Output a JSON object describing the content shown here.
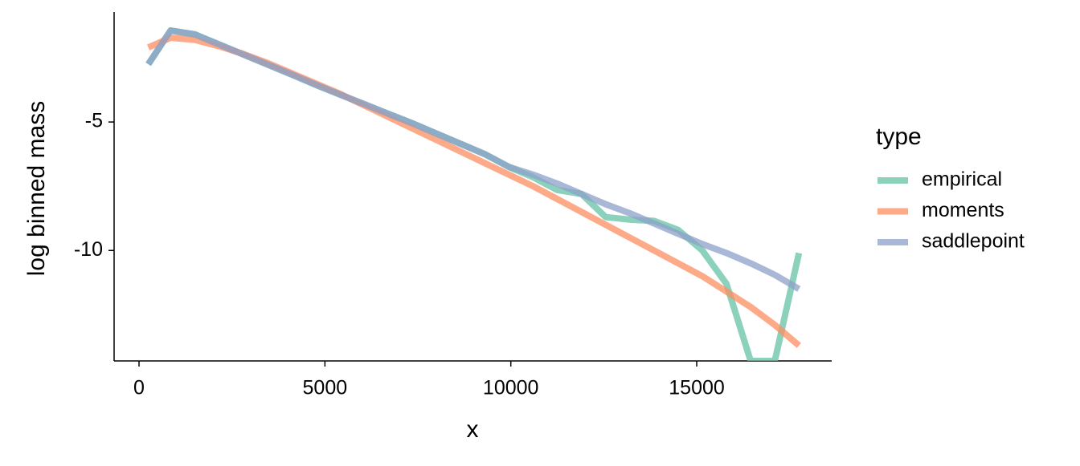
{
  "chart_data": {
    "type": "line",
    "x_label": "x",
    "y_label": "log binned mass",
    "legend_title": "type",
    "legend_position": "right",
    "x": [
      250,
      850,
      1500,
      2150,
      2800,
      3450,
      4100,
      4750,
      5400,
      6050,
      6700,
      7350,
      8000,
      8650,
      9300,
      9950,
      10600,
      11250,
      11900,
      12550,
      13200,
      13850,
      14500,
      15150,
      15800,
      16450,
      17100,
      17750
    ],
    "series": [
      {
        "name": "empirical",
        "color": "#66c2a5",
        "values": [
          -2.75,
          -1.44,
          -1.59,
          -1.98,
          -2.37,
          -2.76,
          -3.15,
          -3.55,
          -3.93,
          -4.3,
          -4.68,
          -5.05,
          -5.45,
          -5.85,
          -6.25,
          -6.75,
          -7.15,
          -7.65,
          -7.8,
          -8.7,
          -8.8,
          -8.85,
          -9.2,
          -10.0,
          -11.3,
          -14.3,
          -14.3,
          -10.1
        ]
      },
      {
        "name": "moments",
        "color": "#fc8d62",
        "values": [
          -2.1,
          -1.72,
          -1.8,
          -2.05,
          -2.35,
          -2.7,
          -3.1,
          -3.5,
          -3.9,
          -4.35,
          -4.8,
          -5.25,
          -5.7,
          -6.15,
          -6.6,
          -7.05,
          -7.5,
          -8.0,
          -8.5,
          -9.0,
          -9.5,
          -10.0,
          -10.5,
          -11.0,
          -11.6,
          -12.2,
          -12.9,
          -13.7
        ]
      },
      {
        "name": "saddlepoint",
        "color": "#8da0cb",
        "values": [
          -2.75,
          -1.44,
          -1.59,
          -1.98,
          -2.37,
          -2.76,
          -3.15,
          -3.55,
          -3.93,
          -4.3,
          -4.68,
          -5.05,
          -5.45,
          -5.85,
          -6.25,
          -6.75,
          -7.05,
          -7.4,
          -7.8,
          -8.2,
          -8.55,
          -8.95,
          -9.35,
          -9.75,
          -10.1,
          -10.5,
          -10.95,
          -11.5
        ]
      }
    ],
    "xlim": [
      -670,
      18630
    ],
    "xticks": [
      0,
      5000,
      10000,
      15000
    ],
    "ylim": [
      -14.3,
      -0.72
    ],
    "yticks": [
      -10,
      -5
    ],
    "grid": false
  }
}
